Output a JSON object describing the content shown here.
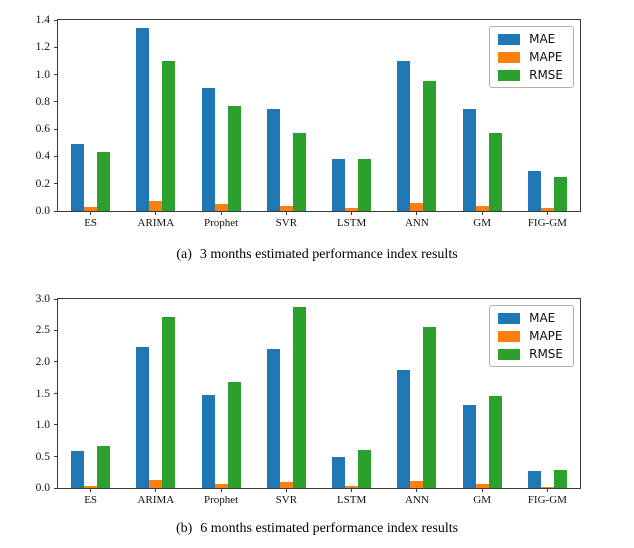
{
  "page": {
    "background": "#ffffff"
  },
  "colors": {
    "mae": "#1f77b4",
    "mape": "#ff7f0e",
    "rmse": "#2ca02c",
    "spine": "#3a3a3a"
  },
  "chart_data": [
    {
      "type": "bar",
      "caption_label": "(a)",
      "caption_text": "3 months estimated performance index results",
      "categories": [
        "ES",
        "ARIMA",
        "Prophet",
        "SVR",
        "LSTM",
        "ANN",
        "GM",
        "FIG-GM"
      ],
      "series": [
        {
          "name": "MAE",
          "color": "#1f77b4",
          "values": [
            0.49,
            1.34,
            0.9,
            0.75,
            0.38,
            1.1,
            0.75,
            0.29
          ]
        },
        {
          "name": "MAPE",
          "color": "#ff7f0e",
          "values": [
            0.03,
            0.07,
            0.05,
            0.04,
            0.02,
            0.06,
            0.04,
            0.02
          ]
        },
        {
          "name": "RMSE",
          "color": "#2ca02c",
          "values": [
            0.43,
            1.1,
            0.77,
            0.57,
            0.38,
            0.95,
            0.57,
            0.25
          ]
        }
      ],
      "xlabel": "",
      "ylabel": "",
      "ylim": [
        0,
        1.4
      ],
      "yticks": [
        "0.0",
        "0.2",
        "0.4",
        "0.6",
        "0.8",
        "1.0",
        "1.2",
        "1.4"
      ],
      "grid": false,
      "legend_position": "upper right",
      "legend_entries": [
        "MAE",
        "MAPE",
        "RMSE"
      ]
    },
    {
      "type": "bar",
      "caption_label": "(b)",
      "caption_text": "6 months estimated performance index results",
      "categories": [
        "ES",
        "ARIMA",
        "Prophet",
        "SVR",
        "LSTM",
        "ANN",
        "GM",
        "FIG-GM"
      ],
      "series": [
        {
          "name": "MAE",
          "color": "#1f77b4",
          "values": [
            0.59,
            2.24,
            1.48,
            2.21,
            0.5,
            1.88,
            1.31,
            0.27
          ]
        },
        {
          "name": "MAPE",
          "color": "#ff7f0e",
          "values": [
            0.03,
            0.12,
            0.07,
            0.1,
            0.03,
            0.11,
            0.06,
            0.01
          ]
        },
        {
          "name": "RMSE",
          "color": "#2ca02c",
          "values": [
            0.66,
            2.71,
            1.68,
            2.88,
            0.61,
            2.56,
            1.46,
            0.29
          ]
        }
      ],
      "xlabel": "",
      "ylabel": "",
      "ylim": [
        0,
        3.0
      ],
      "yticks": [
        "0.0",
        "0.5",
        "1.0",
        "1.5",
        "2.0",
        "2.5",
        "3.0"
      ],
      "grid": false,
      "legend_position": "upper right",
      "legend_entries": [
        "MAE",
        "MAPE",
        "RMSE"
      ]
    }
  ]
}
